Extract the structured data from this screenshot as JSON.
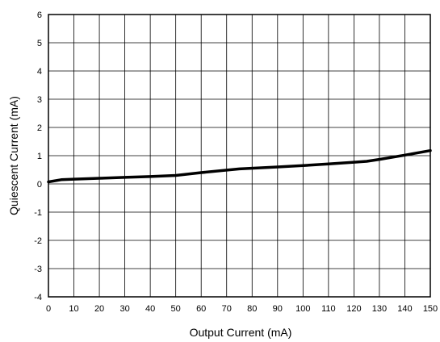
{
  "chart_data": {
    "type": "line",
    "title": "",
    "xlabel": "Output Current (mA)",
    "ylabel": "Quiescent Current (mA)",
    "xlim": [
      0,
      150
    ],
    "ylim": [
      -4,
      6
    ],
    "xticks": [
      "0",
      "10",
      "20",
      "30",
      "40",
      "50",
      "60",
      "70",
      "80",
      "90",
      "100",
      "110",
      "120",
      "130",
      "140",
      "150"
    ],
    "yticks": [
      "6",
      "5",
      "4",
      "3",
      "2",
      "1",
      "0",
      "-1",
      "-2",
      "-3",
      "-4"
    ],
    "grid": true,
    "legend": "none",
    "line_color": "#000000",
    "series": [
      {
        "x": [
          0,
          5,
          10,
          20,
          30,
          40,
          50,
          60,
          75,
          90,
          100,
          110,
          120,
          125,
          130,
          140,
          150
        ],
        "values": [
          0.07,
          0.15,
          0.17,
          0.2,
          0.23,
          0.26,
          0.3,
          0.4,
          0.53,
          0.6,
          0.65,
          0.71,
          0.77,
          0.8,
          0.87,
          1.02,
          1.18
        ]
      }
    ]
  }
}
